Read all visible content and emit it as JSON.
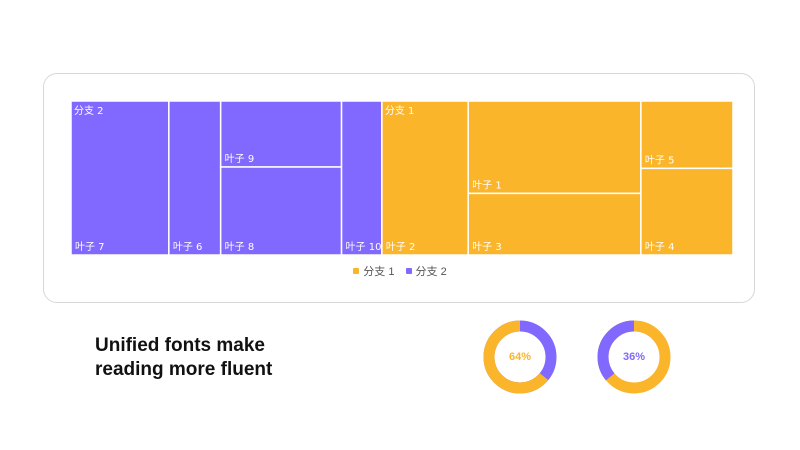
{
  "colors": {
    "branch1": "#FBB52B",
    "branch2": "#8168FF",
    "border": "#ffffff",
    "track": "#ffffff"
  },
  "chart_data": {
    "type": "treemap",
    "legend_position": "bottom",
    "series": [
      {
        "name": "分支 1",
        "label": "分支 1",
        "color": "#FBB52B",
        "leaves": [
          {
            "label": "叶子 1",
            "value": 18
          },
          {
            "label": "叶子 2",
            "value": 15
          },
          {
            "label": "叶子 3",
            "value": 12
          },
          {
            "label": "叶子 4",
            "value": 9
          },
          {
            "label": "叶子 5",
            "value": 7
          }
        ]
      },
      {
        "name": "分支 2",
        "label": "分支 2",
        "color": "#8168FF",
        "leaves": [
          {
            "label": "叶子 7",
            "value": 17
          },
          {
            "label": "叶子 6",
            "value": 9
          },
          {
            "label": "叶子 9",
            "value": 9
          },
          {
            "label": "叶子 8",
            "value": 12
          },
          {
            "label": "叶子 10",
            "value": 7
          }
        ]
      }
    ]
  },
  "headline": {
    "line1": "Unified fonts make",
    "line2": "reading more fluent"
  },
  "donuts": [
    {
      "percent": 64,
      "label": "64%",
      "color": "#FBB52B",
      "track": "#8168FF"
    },
    {
      "percent": 36,
      "label": "36%",
      "color": "#8168FF",
      "track": "#FBB52B"
    }
  ]
}
